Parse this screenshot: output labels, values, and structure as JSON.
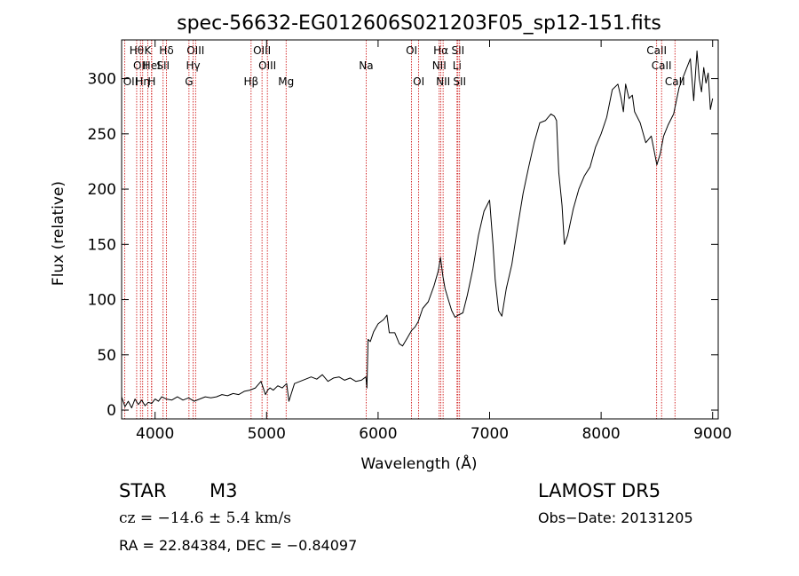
{
  "chart_data": {
    "type": "line",
    "title": "spec-56632-EG012606S021203F05_sp12-151.fits",
    "xlabel": "Wavelength (Å)",
    "ylabel": "Flux (relative)",
    "xlim": [
      3700,
      9050
    ],
    "ylim": [
      -8,
      335
    ],
    "xticks": [
      4000,
      5000,
      6000,
      7000,
      8000,
      9000
    ],
    "yticks": [
      0,
      50,
      100,
      150,
      200,
      250,
      300
    ],
    "grid": false,
    "series": [
      {
        "x": [
          3700,
          3730,
          3760,
          3790,
          3820,
          3850,
          3880,
          3910,
          3940,
          3970,
          4000,
          4030,
          4060,
          4100,
          4150,
          4200,
          4250,
          4300,
          4350,
          4400,
          4450,
          4500,
          4550,
          4600,
          4650,
          4700,
          4750,
          4800,
          4850,
          4900,
          4950,
          4990,
          5010,
          5030,
          5060,
          5100,
          5140,
          5180,
          5200,
          5250,
          5300,
          5350,
          5400,
          5450,
          5500,
          5550,
          5600,
          5650,
          5700,
          5750,
          5800,
          5850,
          5890,
          5900,
          5910,
          5930,
          5960,
          6000,
          6050,
          6080,
          6100,
          6150,
          6190,
          6220,
          6260,
          6300,
          6330,
          6360,
          6400,
          6450,
          6500,
          6540,
          6560,
          6580,
          6600,
          6630,
          6660,
          6690,
          6720,
          6760,
          6800,
          6850,
          6900,
          6950,
          7000,
          7030,
          7050,
          7080,
          7110,
          7150,
          7200,
          7250,
          7300,
          7350,
          7400,
          7450,
          7500,
          7550,
          7580,
          7600,
          7620,
          7650,
          7670,
          7700,
          7750,
          7800,
          7850,
          7900,
          7950,
          8000,
          8050,
          8100,
          8150,
          8180,
          8200,
          8220,
          8250,
          8280,
          8300,
          8350,
          8400,
          8450,
          8500,
          8530,
          8560,
          8600,
          8650,
          8700,
          8750,
          8800,
          8830,
          8860,
          8880,
          8900,
          8920,
          8940,
          8960,
          8980,
          9000
        ],
        "values": [
          12,
          3,
          8,
          2,
          10,
          5,
          9,
          4,
          7,
          6,
          10,
          8,
          12,
          10,
          9,
          12,
          9,
          11,
          8,
          10,
          12,
          11,
          12,
          14,
          13,
          15,
          14,
          17,
          18,
          20,
          26,
          14,
          18,
          20,
          18,
          22,
          20,
          24,
          8,
          24,
          26,
          28,
          30,
          28,
          32,
          26,
          29,
          30,
          27,
          29,
          26,
          27,
          30,
          20,
          64,
          62,
          71,
          78,
          82,
          86,
          70,
          70,
          60,
          58,
          65,
          72,
          75,
          80,
          92,
          98,
          112,
          126,
          138,
          122,
          110,
          100,
          90,
          84,
          86,
          88,
          104,
          128,
          158,
          180,
          190,
          150,
          118,
          90,
          85,
          110,
          132,
          165,
          196,
          220,
          242,
          260,
          262,
          268,
          266,
          262,
          215,
          185,
          150,
          158,
          182,
          200,
          212,
          220,
          238,
          250,
          265,
          290,
          295,
          282,
          270,
          295,
          282,
          285,
          270,
          260,
          242,
          248,
          222,
          232,
          248,
          258,
          268,
          292,
          305,
          318,
          280,
          325,
          300,
          288,
          310,
          296,
          305,
          272,
          282
        ]
      }
    ],
    "line_marks": [
      {
        "x": 3835,
        "label": "Hθ",
        "row": 0
      },
      {
        "x": 3869,
        "label": "OII",
        "row": 1
      },
      {
        "x": 3727,
        "label": "OII",
        "row": 2
      },
      {
        "x": 3889,
        "label": "Hη",
        "row": 2
      },
      {
        "x": 3934,
        "label": "K",
        "row": 0
      },
      {
        "x": 3968,
        "label": "HeI",
        "row": 1
      },
      {
        "x": 3970,
        "label": "H",
        "row": 2
      },
      {
        "x": 4102,
        "label": "Hδ",
        "row": 0
      },
      {
        "x": 4072,
        "label": "SII",
        "row": 1
      },
      {
        "x": 4363,
        "label": "OIII",
        "row": 0
      },
      {
        "x": 4341,
        "label": "Hγ",
        "row": 1
      },
      {
        "x": 4304,
        "label": "G",
        "row": 2
      },
      {
        "x": 4959,
        "label": "OIII",
        "row": 0
      },
      {
        "x": 5007,
        "label": "OIII",
        "row": 1
      },
      {
        "x": 4861,
        "label": "Hβ",
        "row": 2
      },
      {
        "x": 5175,
        "label": "Mg",
        "row": 2
      },
      {
        "x": 5893,
        "label": "Na",
        "row": 1
      },
      {
        "x": 6300,
        "label": "OI",
        "row": 0
      },
      {
        "x": 6364,
        "label": "OI",
        "row": 2
      },
      {
        "x": 6563,
        "label": "Hα",
        "row": 0
      },
      {
        "x": 6548,
        "label": "NII",
        "row": 1
      },
      {
        "x": 6583,
        "label": "NII",
        "row": 2
      },
      {
        "x": 6716,
        "label": "SII",
        "row": 0
      },
      {
        "x": 6708,
        "label": "Li",
        "row": 1
      },
      {
        "x": 6731,
        "label": "SII",
        "row": 2
      },
      {
        "x": 8498,
        "label": "CaII",
        "row": 0
      },
      {
        "x": 8542,
        "label": "CaII",
        "row": 1
      },
      {
        "x": 8662,
        "label": "CaII",
        "row": 2
      }
    ],
    "line_color": "#000000",
    "marker_color": "#cc0000"
  },
  "info": {
    "object_class": "STAR",
    "subclass": "M3",
    "survey": "LAMOST  DR5",
    "cz": "cz = −14.6 ± 5.4 km/s",
    "obs_date": "Obs−Date: 20131205",
    "coords": "RA =  22.84384, DEC =  −0.84097"
  }
}
